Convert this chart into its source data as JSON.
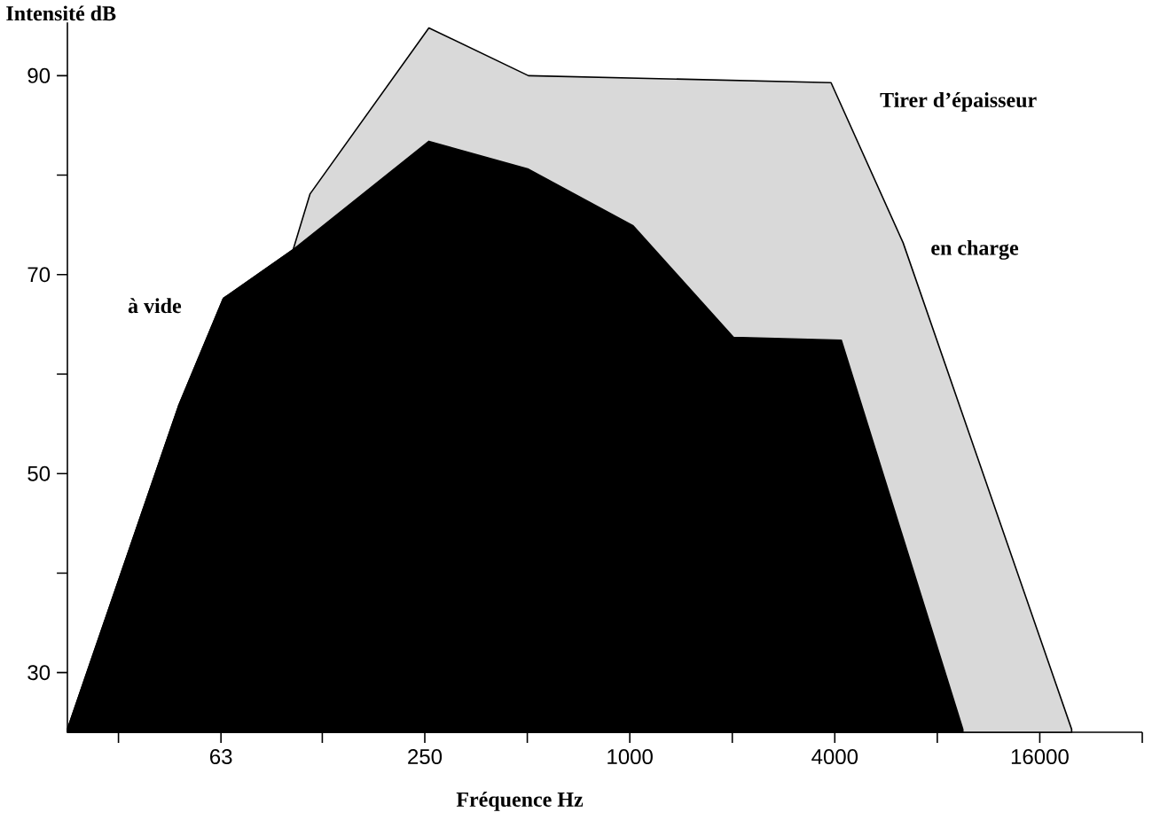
{
  "chart_data": {
    "type": "area",
    "xlabel": "Fréquence Hz",
    "ylabel": "Intensité dB",
    "annotations": [
      "Tirer d’épaisseur"
    ],
    "log": "x",
    "legend": false,
    "grid": false,
    "xlim": [
      22.3,
      32000
    ],
    "ylim": [
      24,
      96
    ],
    "xticks": [
      {
        "value": 31.5,
        "label": null
      },
      63,
      {
        "value": 125,
        "label": null
      },
      250,
      {
        "value": 500,
        "label": null
      },
      1000,
      {
        "value": 2000,
        "label": null
      },
      4000,
      {
        "value": 8000,
        "label": null
      },
      16000,
      {
        "value": 32000,
        "label": null
      }
    ],
    "yticks": [
      30,
      {
        "value": 40,
        "label": null
      },
      50,
      {
        "value": 60,
        "label": null
      },
      70,
      {
        "value": 80,
        "label": null
      },
      90
    ],
    "series": [
      {
        "name": "en charge",
        "color": "#d9d9d9",
        "x": [
          22.3,
          47.3,
          64,
          102.6,
          115,
          257,
          504,
          3900,
          6350,
          19850
        ],
        "values": [
          24.3,
          56.8,
          67.6,
          72.5,
          78.1,
          94.8,
          90,
          89.3,
          73.2,
          24.3
        ]
      },
      {
        "name": "à vide",
        "color": "#000000",
        "x": [
          22.3,
          47.3,
          64,
          102.6,
          257,
          504,
          1023,
          2016,
          4180,
          9510
        ],
        "values": [
          24.3,
          56.8,
          67.6,
          72.5,
          83.4,
          80.6,
          74.9,
          63.7,
          63.4,
          24.3
        ]
      }
    ]
  }
}
